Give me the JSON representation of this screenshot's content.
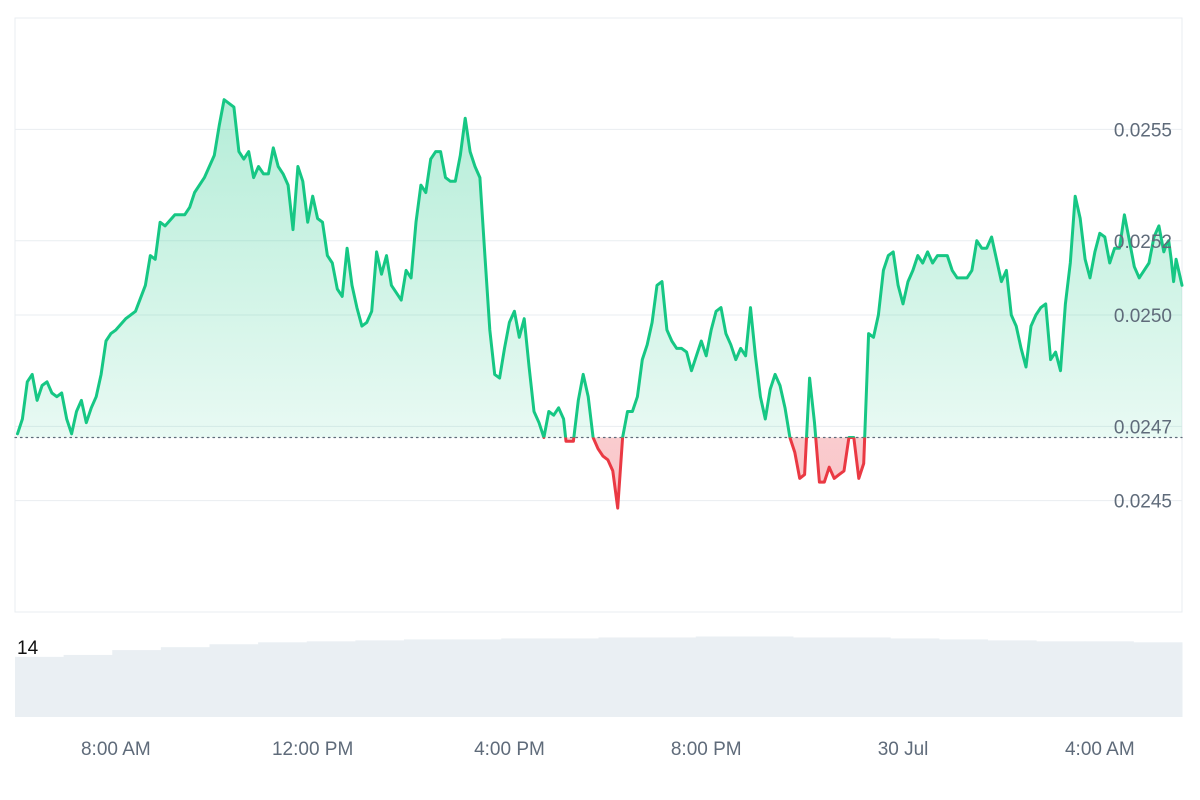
{
  "chart_data": {
    "type": "area",
    "baseline": 0.02467,
    "ylim": [
      0.0242,
      0.0258
    ],
    "y_ticks": [
      {
        "value": 0.0245,
        "label": "0.0245"
      },
      {
        "value": 0.0247,
        "label": "0.0247"
      },
      {
        "value": 0.025,
        "label": "0.0250"
      },
      {
        "value": 0.0252,
        "label": "0.0252"
      },
      {
        "value": 0.0255,
        "label": "0.0255"
      }
    ],
    "x_ticks": [
      {
        "t": 2.0,
        "label": "8:00 AM"
      },
      {
        "t": 6.0,
        "label": "12:00 PM"
      },
      {
        "t": 10.0,
        "label": "4:00 PM"
      },
      {
        "t": 14.0,
        "label": "8:00 PM"
      },
      {
        "t": 18.0,
        "label": "30 Jul"
      },
      {
        "t": 22.0,
        "label": "4:00 AM"
      }
    ],
    "xlim": [
      -0.05,
      23.67
    ],
    "series": [
      {
        "values": [
          [
            0.0,
            0.02468
          ],
          [
            0.1,
            0.02472
          ],
          [
            0.2,
            0.02482
          ],
          [
            0.3,
            0.02484
          ],
          [
            0.4,
            0.02477
          ],
          [
            0.5,
            0.02481
          ],
          [
            0.6,
            0.02482
          ],
          [
            0.7,
            0.02479
          ],
          [
            0.8,
            0.02478
          ],
          [
            0.9,
            0.02479
          ],
          [
            1.0,
            0.02472
          ],
          [
            1.1,
            0.02468
          ],
          [
            1.2,
            0.02474
          ],
          [
            1.3,
            0.02477
          ],
          [
            1.4,
            0.02471
          ],
          [
            1.5,
            0.02475
          ],
          [
            1.6,
            0.02478
          ],
          [
            1.7,
            0.02484
          ],
          [
            1.8,
            0.02493
          ],
          [
            1.9,
            0.02495
          ],
          [
            2.0,
            0.02496
          ],
          [
            2.2,
            0.02499
          ],
          [
            2.4,
            0.02501
          ],
          [
            2.6,
            0.02508
          ],
          [
            2.7,
            0.02516
          ],
          [
            2.8,
            0.02515
          ],
          [
            2.9,
            0.02525
          ],
          [
            3.0,
            0.02524
          ],
          [
            3.2,
            0.02527
          ],
          [
            3.4,
            0.02527
          ],
          [
            3.5,
            0.02529
          ],
          [
            3.6,
            0.02533
          ],
          [
            3.8,
            0.02537
          ],
          [
            4.0,
            0.02543
          ],
          [
            4.1,
            0.02551
          ],
          [
            4.2,
            0.02558
          ],
          [
            4.4,
            0.02556
          ],
          [
            4.5,
            0.02544
          ],
          [
            4.6,
            0.02542
          ],
          [
            4.7,
            0.02544
          ],
          [
            4.8,
            0.02537
          ],
          [
            4.9,
            0.0254
          ],
          [
            5.0,
            0.02538
          ],
          [
            5.1,
            0.02538
          ],
          [
            5.2,
            0.02545
          ],
          [
            5.3,
            0.0254
          ],
          [
            5.4,
            0.02538
          ],
          [
            5.5,
            0.02535
          ],
          [
            5.6,
            0.02523
          ],
          [
            5.7,
            0.0254
          ],
          [
            5.8,
            0.02536
          ],
          [
            5.9,
            0.02525
          ],
          [
            6.0,
            0.02532
          ],
          [
            6.1,
            0.02526
          ],
          [
            6.2,
            0.02525
          ],
          [
            6.3,
            0.02516
          ],
          [
            6.4,
            0.02514
          ],
          [
            6.5,
            0.02507
          ],
          [
            6.6,
            0.02505
          ],
          [
            6.7,
            0.02518
          ],
          [
            6.8,
            0.02508
          ],
          [
            6.9,
            0.02502
          ],
          [
            7.0,
            0.02497
          ],
          [
            7.1,
            0.02498
          ],
          [
            7.2,
            0.02501
          ],
          [
            7.3,
            0.02517
          ],
          [
            7.4,
            0.02511
          ],
          [
            7.5,
            0.02516
          ],
          [
            7.6,
            0.02508
          ],
          [
            7.7,
            0.02506
          ],
          [
            7.8,
            0.02504
          ],
          [
            7.9,
            0.02512
          ],
          [
            8.0,
            0.0251
          ],
          [
            8.1,
            0.02525
          ],
          [
            8.2,
            0.02535
          ],
          [
            8.3,
            0.02533
          ],
          [
            8.4,
            0.02542
          ],
          [
            8.5,
            0.02544
          ],
          [
            8.6,
            0.02544
          ],
          [
            8.7,
            0.02537
          ],
          [
            8.8,
            0.02536
          ],
          [
            8.9,
            0.02536
          ],
          [
            9.0,
            0.02543
          ],
          [
            9.1,
            0.02553
          ],
          [
            9.2,
            0.02544
          ],
          [
            9.3,
            0.0254
          ],
          [
            9.4,
            0.02537
          ],
          [
            9.5,
            0.02516
          ],
          [
            9.6,
            0.02496
          ],
          [
            9.7,
            0.02484
          ],
          [
            9.8,
            0.02483
          ],
          [
            9.9,
            0.02491
          ],
          [
            10.0,
            0.02498
          ],
          [
            10.1,
            0.02501
          ],
          [
            10.2,
            0.02494
          ],
          [
            10.3,
            0.02499
          ],
          [
            10.4,
            0.02486
          ],
          [
            10.5,
            0.02474
          ],
          [
            10.6,
            0.02471
          ],
          [
            10.7,
            0.02467
          ],
          [
            10.8,
            0.02474
          ],
          [
            10.9,
            0.02473
          ],
          [
            11.0,
            0.02475
          ],
          [
            11.1,
            0.02472
          ],
          [
            11.15,
            0.02466
          ],
          [
            11.3,
            0.02466
          ],
          [
            11.4,
            0.02477
          ],
          [
            11.5,
            0.02484
          ],
          [
            11.6,
            0.02478
          ],
          [
            11.7,
            0.02467
          ],
          [
            11.8,
            0.02464
          ],
          [
            11.9,
            0.02462
          ],
          [
            12.0,
            0.02461
          ],
          [
            12.1,
            0.02458
          ],
          [
            12.2,
            0.02448
          ],
          [
            12.3,
            0.02467
          ],
          [
            12.4,
            0.02474
          ],
          [
            12.5,
            0.02474
          ],
          [
            12.6,
            0.02478
          ],
          [
            12.7,
            0.02488
          ],
          [
            12.8,
            0.02492
          ],
          [
            12.9,
            0.02498
          ],
          [
            13.0,
            0.02508
          ],
          [
            13.1,
            0.02509
          ],
          [
            13.2,
            0.02496
          ],
          [
            13.3,
            0.02493
          ],
          [
            13.4,
            0.02491
          ],
          [
            13.5,
            0.02491
          ],
          [
            13.6,
            0.0249
          ],
          [
            13.7,
            0.02485
          ],
          [
            13.8,
            0.02489
          ],
          [
            13.9,
            0.02493
          ],
          [
            14.0,
            0.02489
          ],
          [
            14.1,
            0.02496
          ],
          [
            14.2,
            0.02501
          ],
          [
            14.3,
            0.02502
          ],
          [
            14.4,
            0.02495
          ],
          [
            14.5,
            0.02492
          ],
          [
            14.6,
            0.02488
          ],
          [
            14.7,
            0.02491
          ],
          [
            14.8,
            0.02489
          ],
          [
            14.9,
            0.02502
          ],
          [
            15.0,
            0.02489
          ],
          [
            15.1,
            0.02478
          ],
          [
            15.2,
            0.02472
          ],
          [
            15.3,
            0.0248
          ],
          [
            15.4,
            0.02484
          ],
          [
            15.5,
            0.02481
          ],
          [
            15.6,
            0.02475
          ],
          [
            15.7,
            0.02467
          ],
          [
            15.8,
            0.02463
          ],
          [
            15.9,
            0.02456
          ],
          [
            16.0,
            0.02457
          ],
          [
            16.1,
            0.02483
          ],
          [
            16.2,
            0.02471
          ],
          [
            16.3,
            0.02455
          ],
          [
            16.4,
            0.02455
          ],
          [
            16.5,
            0.02459
          ],
          [
            16.6,
            0.02456
          ],
          [
            16.7,
            0.02457
          ],
          [
            16.8,
            0.02458
          ],
          [
            16.9,
            0.02467
          ],
          [
            17.0,
            0.02467
          ],
          [
            17.1,
            0.02456
          ],
          [
            17.2,
            0.0246
          ],
          [
            17.3,
            0.02495
          ],
          [
            17.4,
            0.02494
          ],
          [
            17.5,
            0.025
          ],
          [
            17.6,
            0.02512
          ],
          [
            17.7,
            0.02516
          ],
          [
            17.8,
            0.02517
          ],
          [
            17.9,
            0.02508
          ],
          [
            18.0,
            0.02503
          ],
          [
            18.1,
            0.02509
          ],
          [
            18.2,
            0.02512
          ],
          [
            18.3,
            0.02516
          ],
          [
            18.4,
            0.02514
          ],
          [
            18.5,
            0.02517
          ],
          [
            18.6,
            0.02514
          ],
          [
            18.7,
            0.02516
          ],
          [
            18.8,
            0.02516
          ],
          [
            18.9,
            0.02516
          ],
          [
            19.0,
            0.02512
          ],
          [
            19.1,
            0.0251
          ],
          [
            19.2,
            0.0251
          ],
          [
            19.3,
            0.0251
          ],
          [
            19.4,
            0.02512
          ],
          [
            19.5,
            0.0252
          ],
          [
            19.6,
            0.02518
          ],
          [
            19.7,
            0.02518
          ],
          [
            19.8,
            0.02521
          ],
          [
            19.9,
            0.02515
          ],
          [
            20.0,
            0.02509
          ],
          [
            20.1,
            0.02512
          ],
          [
            20.2,
            0.025
          ],
          [
            20.3,
            0.02497
          ],
          [
            20.4,
            0.02491
          ],
          [
            20.5,
            0.02486
          ],
          [
            20.6,
            0.02497
          ],
          [
            20.7,
            0.025
          ],
          [
            20.8,
            0.02502
          ],
          [
            20.9,
            0.02503
          ],
          [
            21.0,
            0.02488
          ],
          [
            21.1,
            0.0249
          ],
          [
            21.2,
            0.02485
          ],
          [
            21.3,
            0.02503
          ],
          [
            21.4,
            0.02514
          ],
          [
            21.5,
            0.02532
          ],
          [
            21.6,
            0.02526
          ],
          [
            21.7,
            0.02515
          ],
          [
            21.8,
            0.0251
          ],
          [
            21.9,
            0.02517
          ],
          [
            22.0,
            0.02522
          ],
          [
            22.1,
            0.02521
          ],
          [
            22.2,
            0.02514
          ],
          [
            22.3,
            0.02518
          ],
          [
            22.4,
            0.02518
          ],
          [
            22.5,
            0.02527
          ],
          [
            22.6,
            0.0252
          ],
          [
            22.7,
            0.02513
          ],
          [
            22.8,
            0.0251
          ],
          [
            22.9,
            0.02512
          ],
          [
            23.0,
            0.02514
          ],
          [
            23.1,
            0.02521
          ],
          [
            23.2,
            0.02524
          ],
          [
            23.3,
            0.02517
          ],
          [
            23.35,
            0.02519
          ],
          [
            23.4,
            0.0252
          ],
          [
            23.45,
            0.02515
          ],
          [
            23.5,
            0.02509
          ],
          [
            23.55,
            0.02515
          ],
          [
            23.67,
            0.02508
          ]
        ]
      }
    ],
    "volume": {
      "label": "14",
      "values": [
        0.62,
        0.64,
        0.69,
        0.72,
        0.75,
        0.77,
        0.78,
        0.79,
        0.8,
        0.8,
        0.81,
        0.81,
        0.82,
        0.82,
        0.83,
        0.83,
        0.82,
        0.82,
        0.81,
        0.8,
        0.79,
        0.78,
        0.78,
        0.77
      ]
    },
    "grid": true,
    "colors": {
      "up": "#16c784",
      "down": "#ea3943",
      "grid": "#e9edf1",
      "baseline": "#5f6b7a",
      "volume": "#eaeff3"
    }
  }
}
